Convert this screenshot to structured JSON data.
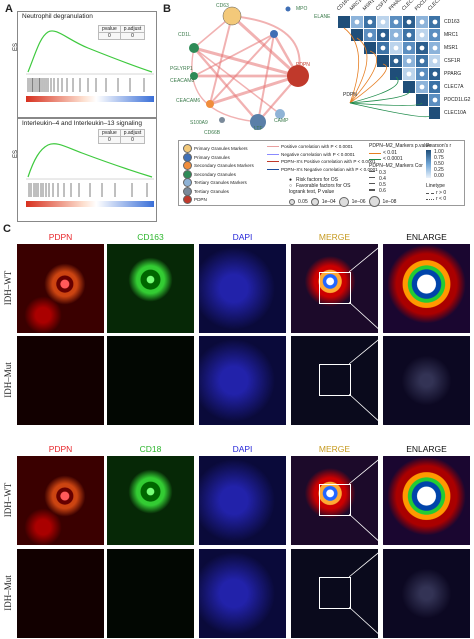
{
  "panels": {
    "a": {
      "letter": "A"
    },
    "b": {
      "letter": "B"
    },
    "c": {
      "letter": "C"
    }
  },
  "gsea": [
    {
      "title": "Neutrophil degranulation",
      "ylabel": "ES",
      "table_headers": [
        "pvalue",
        "p.adjust"
      ],
      "table_values": [
        "0",
        "0"
      ],
      "curve_color": "#3ec93e"
    },
    {
      "title": "Interleukin–4 and Interleukin–13 signaling",
      "ylabel": "ES",
      "table_headers": [
        "pvalue",
        "p.adjust"
      ],
      "table_values": [
        "0",
        "0"
      ],
      "curve_color": "#3ec93e"
    }
  ],
  "network": {
    "nodes": [
      "CD63",
      "MPO",
      "ELANE",
      "PDPN",
      "CD1L",
      "PGLYRP1",
      "CEACAM8",
      "CEACAM6",
      "S100A9",
      "CD66B",
      "LTF",
      "CAMP"
    ],
    "edge_color": "#e57373"
  },
  "heatmap": {
    "col_labels": [
      "CD163",
      "MRC1",
      "MSR1",
      "CSF1R",
      "PPARG",
      "CLEC7A",
      "PDCD1LG2",
      "CLEC10A"
    ],
    "row_labels": [
      "CD163",
      "MRC1",
      "MSR1",
      "CSF1R",
      "PPARG",
      "CLEC7A",
      "PDCD1LG2",
      "CLEC10A"
    ],
    "pdpn_label": "PDPN"
  },
  "legend": {
    "node_items": [
      {
        "label": "Primary Granules Markers",
        "color": "#f3c97a"
      },
      {
        "label": "Primary Granules",
        "color": "#3f6fb5"
      },
      {
        "label": "Secondary Granules Markers",
        "color": "#f08d3c"
      },
      {
        "label": "Secondary Granules",
        "color": "#2e8b57"
      },
      {
        "label": "Tertiary Granules Markers",
        "color": "#8fb3d6"
      },
      {
        "label": "Tertiary Granules",
        "color": "#7a8a9a"
      },
      {
        "label": "PDPN",
        "color": "#c0392b"
      }
    ],
    "edge_items": [
      {
        "label": "Positive correlation with P < 0.0001",
        "color": "#e8a0a0"
      },
      {
        "label": "Negative correlation with P < 0.0001",
        "color": "#8a8aff"
      },
      {
        "label": "PDPN–X's Positive correlation with P < 0.0001",
        "color": "#c0392b"
      },
      {
        "label": "PDPN–X's Negative correlation with P < 0.0001",
        "color": "#1f4e9e"
      }
    ],
    "risk_items": [
      {
        "label": "Risk factors for OS",
        "symbol": "●"
      },
      {
        "label": "Favorable factors for OS",
        "symbol": "○"
      }
    ],
    "logrank_title": "logrank test, P value",
    "size_labels": [
      "1e–04",
      "1e–06",
      "1e–08"
    ],
    "size_first": "0.05",
    "mid_title_1": "PDPN–M2_Markers p.value",
    "mid_p_items": [
      {
        "label": "< 0.01",
        "color": "#e67e22"
      },
      {
        "label": "< 0.0001",
        "color": "#1e8b4a"
      }
    ],
    "mid_title_2": "PDPN–M2_Markers Cor",
    "cor_items": [
      "0.3",
      "0.4",
      "0.5",
      "0.6"
    ],
    "pearson_title": "Pearson's r",
    "pearson_ticks": [
      "1.00",
      "0.75",
      "0.50",
      "0.25",
      "0.00"
    ],
    "linetype_title": "Linetype",
    "linetype_items": [
      "r > 0",
      "r < 0"
    ]
  },
  "micro": {
    "row_labels": [
      "IDH–WT",
      "IDH–Mut",
      "IDH–WT",
      "IDH–Mut"
    ],
    "set1_cols": [
      "PDPN",
      "CD163",
      "DAPI",
      "MERGE",
      "ENLARGE"
    ],
    "set2_cols": [
      "PDPN",
      "CD18",
      "DAPI",
      "MERGE",
      "ENLARGE"
    ],
    "col_colors": [
      "#e8262b",
      "#2bb52b",
      "#2626d9",
      "#c69a1f",
      "#111111"
    ]
  }
}
